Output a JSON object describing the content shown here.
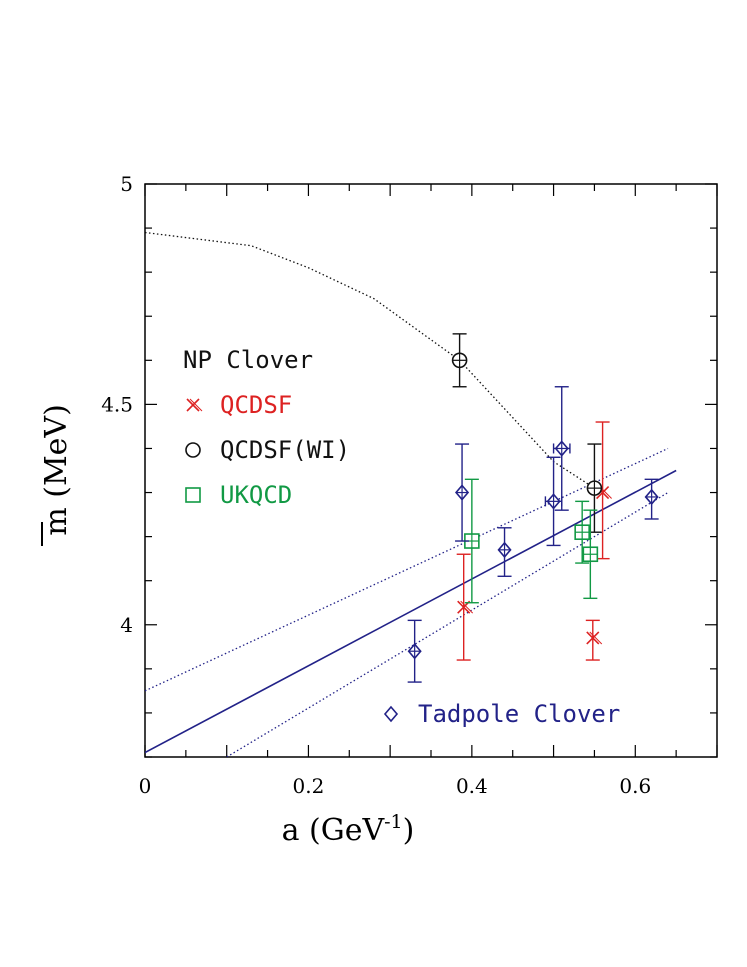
{
  "chart_data": {
    "type": "scatter",
    "xlabel": "a (GeV",
    "xlabel_sup": "-1",
    "xlabel_close": ")",
    "ylabel_sym": "m",
    "ylabel_unit": "(MeV)",
    "xlim": [
      0,
      0.7
    ],
    "ylim": [
      3.7,
      5.0
    ],
    "xticks": [
      0,
      0.2,
      0.4,
      0.6
    ],
    "xtick_labels": [
      "0",
      "0.2",
      "0.4",
      "0.6"
    ],
    "yticks": [
      4,
      4.5,
      5
    ],
    "ytick_labels": [
      "4",
      "4.5",
      "5"
    ],
    "legend_heading": "NP Clover",
    "series": [
      {
        "name": "QCDSF",
        "color": "#dd2222",
        "marker": "x",
        "points": [
          {
            "x": 0.39,
            "y": 4.04,
            "ylo": 3.92,
            "yhi": 4.16
          },
          {
            "x": 0.548,
            "y": 3.97,
            "ylo": 3.92,
            "yhi": 4.01
          },
          {
            "x": 0.56,
            "y": 4.3,
            "ylo": 4.15,
            "yhi": 4.46
          }
        ]
      },
      {
        "name": "QCDSF(WI)",
        "color": "#111111",
        "marker": "circle-plus",
        "points": [
          {
            "x": 0.385,
            "y": 4.6,
            "ylo": 4.54,
            "yhi": 4.66
          },
          {
            "x": 0.55,
            "y": 4.31,
            "ylo": 4.21,
            "yhi": 4.41
          }
        ]
      },
      {
        "name": "UKQCD",
        "color": "#119944",
        "marker": "square-plus",
        "points": [
          {
            "x": 0.4,
            "y": 4.19,
            "ylo": 4.05,
            "yhi": 4.33
          },
          {
            "x": 0.535,
            "y": 4.21,
            "ylo": 4.14,
            "yhi": 4.28
          },
          {
            "x": 0.545,
            "y": 4.16,
            "ylo": 4.06,
            "yhi": 4.26
          }
        ]
      },
      {
        "name": "Tadpole Clover",
        "color": "#222288",
        "marker": "diamond-plus",
        "points": [
          {
            "x": 0.33,
            "y": 3.94,
            "ylo": 3.87,
            "yhi": 4.01
          },
          {
            "x": 0.388,
            "y": 4.3,
            "ylo": 4.19,
            "yhi": 4.41
          },
          {
            "x": 0.44,
            "y": 4.17,
            "ylo": 4.11,
            "yhi": 4.22
          },
          {
            "x": 0.5,
            "y": 4.28,
            "ylo": 4.18,
            "yhi": 4.38,
            "xlo": 0.49,
            "xhi": 0.51
          },
          {
            "x": 0.51,
            "y": 4.4,
            "ylo": 4.26,
            "yhi": 4.54,
            "xlo": 0.5,
            "xhi": 0.52
          },
          {
            "x": 0.62,
            "y": 4.29,
            "ylo": 4.24,
            "yhi": 4.33
          }
        ]
      }
    ],
    "fit_line": {
      "color": "#222288",
      "x0": 0,
      "y0": 3.71,
      "x1": 0.65,
      "y1": 4.35
    },
    "fit_band_upper": {
      "color": "#222288",
      "x0": 0,
      "y0": 3.85,
      "x1": 0.64,
      "y1": 4.4
    },
    "fit_band_lower": {
      "color": "#222288",
      "x0": 0.1,
      "y0": 3.7,
      "x1": 0.64,
      "y1": 4.3
    },
    "curve": {
      "color": "#111111",
      "points": [
        [
          0,
          4.89
        ],
        [
          0.13,
          4.86
        ],
        [
          0.2,
          4.81
        ],
        [
          0.28,
          4.74
        ],
        [
          0.34,
          4.66
        ],
        [
          0.385,
          4.6
        ],
        [
          0.45,
          4.47
        ],
        [
          0.5,
          4.37
        ],
        [
          0.55,
          4.31
        ]
      ]
    }
  }
}
